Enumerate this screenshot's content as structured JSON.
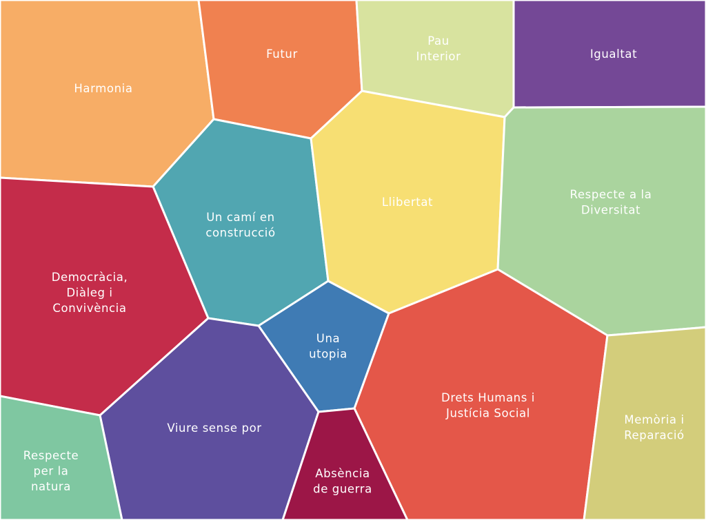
{
  "cells": [
    {
      "id": "harmonia",
      "lines": [
        "Harmonia"
      ],
      "color": "#F7AD66"
    },
    {
      "id": "futur",
      "lines": [
        "Futur"
      ],
      "color": "#F08150"
    },
    {
      "id": "pau-interior",
      "lines": [
        "Pau",
        "Interior"
      ],
      "color": "#D8E39F"
    },
    {
      "id": "igualtat",
      "lines": [
        "Igualtat"
      ],
      "color": "#744896"
    },
    {
      "id": "cami",
      "lines": [
        "Un camí en",
        "construcció"
      ],
      "color": "#51A6B1"
    },
    {
      "id": "llibertat",
      "lines": [
        "Llibertat"
      ],
      "color": "#F7DF73"
    },
    {
      "id": "diversitat",
      "lines": [
        "Respecte a la",
        "Diversitat"
      ],
      "color": "#AAD49E"
    },
    {
      "id": "democracia",
      "lines": [
        "Democràcia,",
        "Diàleg i",
        "Convivència"
      ],
      "color": "#C42C4A"
    },
    {
      "id": "utopia",
      "lines": [
        "Una",
        "utopia"
      ],
      "color": "#3F7BB4"
    },
    {
      "id": "drets",
      "lines": [
        "Drets Humans i",
        "Justícia Social"
      ],
      "color": "#E45749"
    },
    {
      "id": "memoria",
      "lines": [
        "Memòria i",
        "Reparació"
      ],
      "color": "#D3CD7B"
    },
    {
      "id": "viure",
      "lines": [
        "Viure sense por"
      ],
      "color": "#5E4F9E"
    },
    {
      "id": "natura",
      "lines": [
        "Respecte",
        "per la",
        "natura"
      ],
      "color": "#7FC7A1"
    },
    {
      "id": "absencia",
      "lines": [
        "Absència",
        "de guerra"
      ],
      "color": "#9C1647"
    }
  ]
}
